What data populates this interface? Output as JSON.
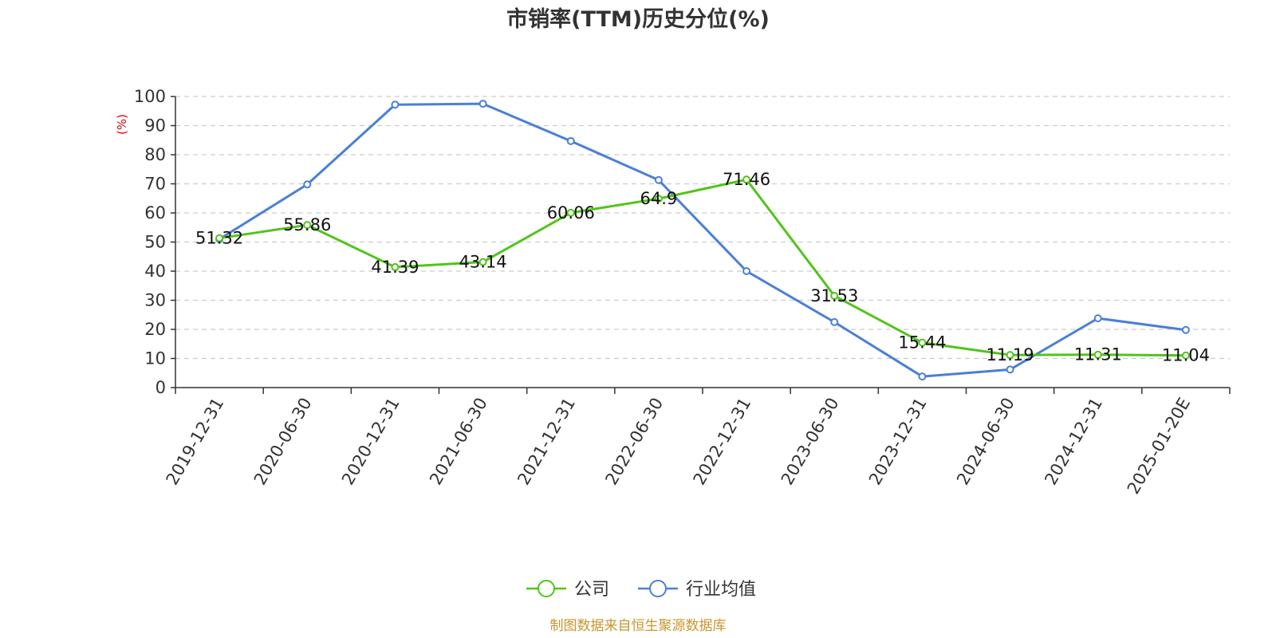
{
  "chart_data": {
    "type": "line",
    "title": "市销率(TTM)历史分位(%)",
    "ylabel": "(%)",
    "ylim": [
      0,
      100
    ],
    "yticks": [
      0,
      10,
      20,
      30,
      40,
      50,
      60,
      70,
      80,
      90,
      100
    ],
    "grid": true,
    "legend_placement": "bottom-center",
    "categories": [
      "2019-12-31",
      "2020-06-30",
      "2020-12-31",
      "2021-06-30",
      "2021-12-31",
      "2022-06-30",
      "2022-12-31",
      "2023-06-30",
      "2023-12-31",
      "2024-06-30",
      "2024-12-31",
      "2025-01-20E"
    ],
    "series": [
      {
        "name": "公司",
        "color": "#52c41a",
        "values": [
          51.32,
          55.86,
          41.39,
          43.14,
          60.06,
          64.9,
          71.46,
          31.53,
          15.44,
          11.19,
          11.31,
          11.04
        ],
        "value_labels": [
          "51.32",
          "55.86",
          "41.39",
          "43.14",
          "60.06",
          "64.9",
          "71.46",
          "31.53",
          "15.44",
          "11.19",
          "11.31",
          "11.04"
        ]
      },
      {
        "name": "行业均值",
        "color": "#4a7fd6",
        "values": [
          51.0,
          69.8,
          97.2,
          97.5,
          84.7,
          71.3,
          40.0,
          22.5,
          3.8,
          6.2,
          23.8,
          19.8
        ]
      }
    ],
    "source": "制图数据来自恒生聚源数据库"
  }
}
